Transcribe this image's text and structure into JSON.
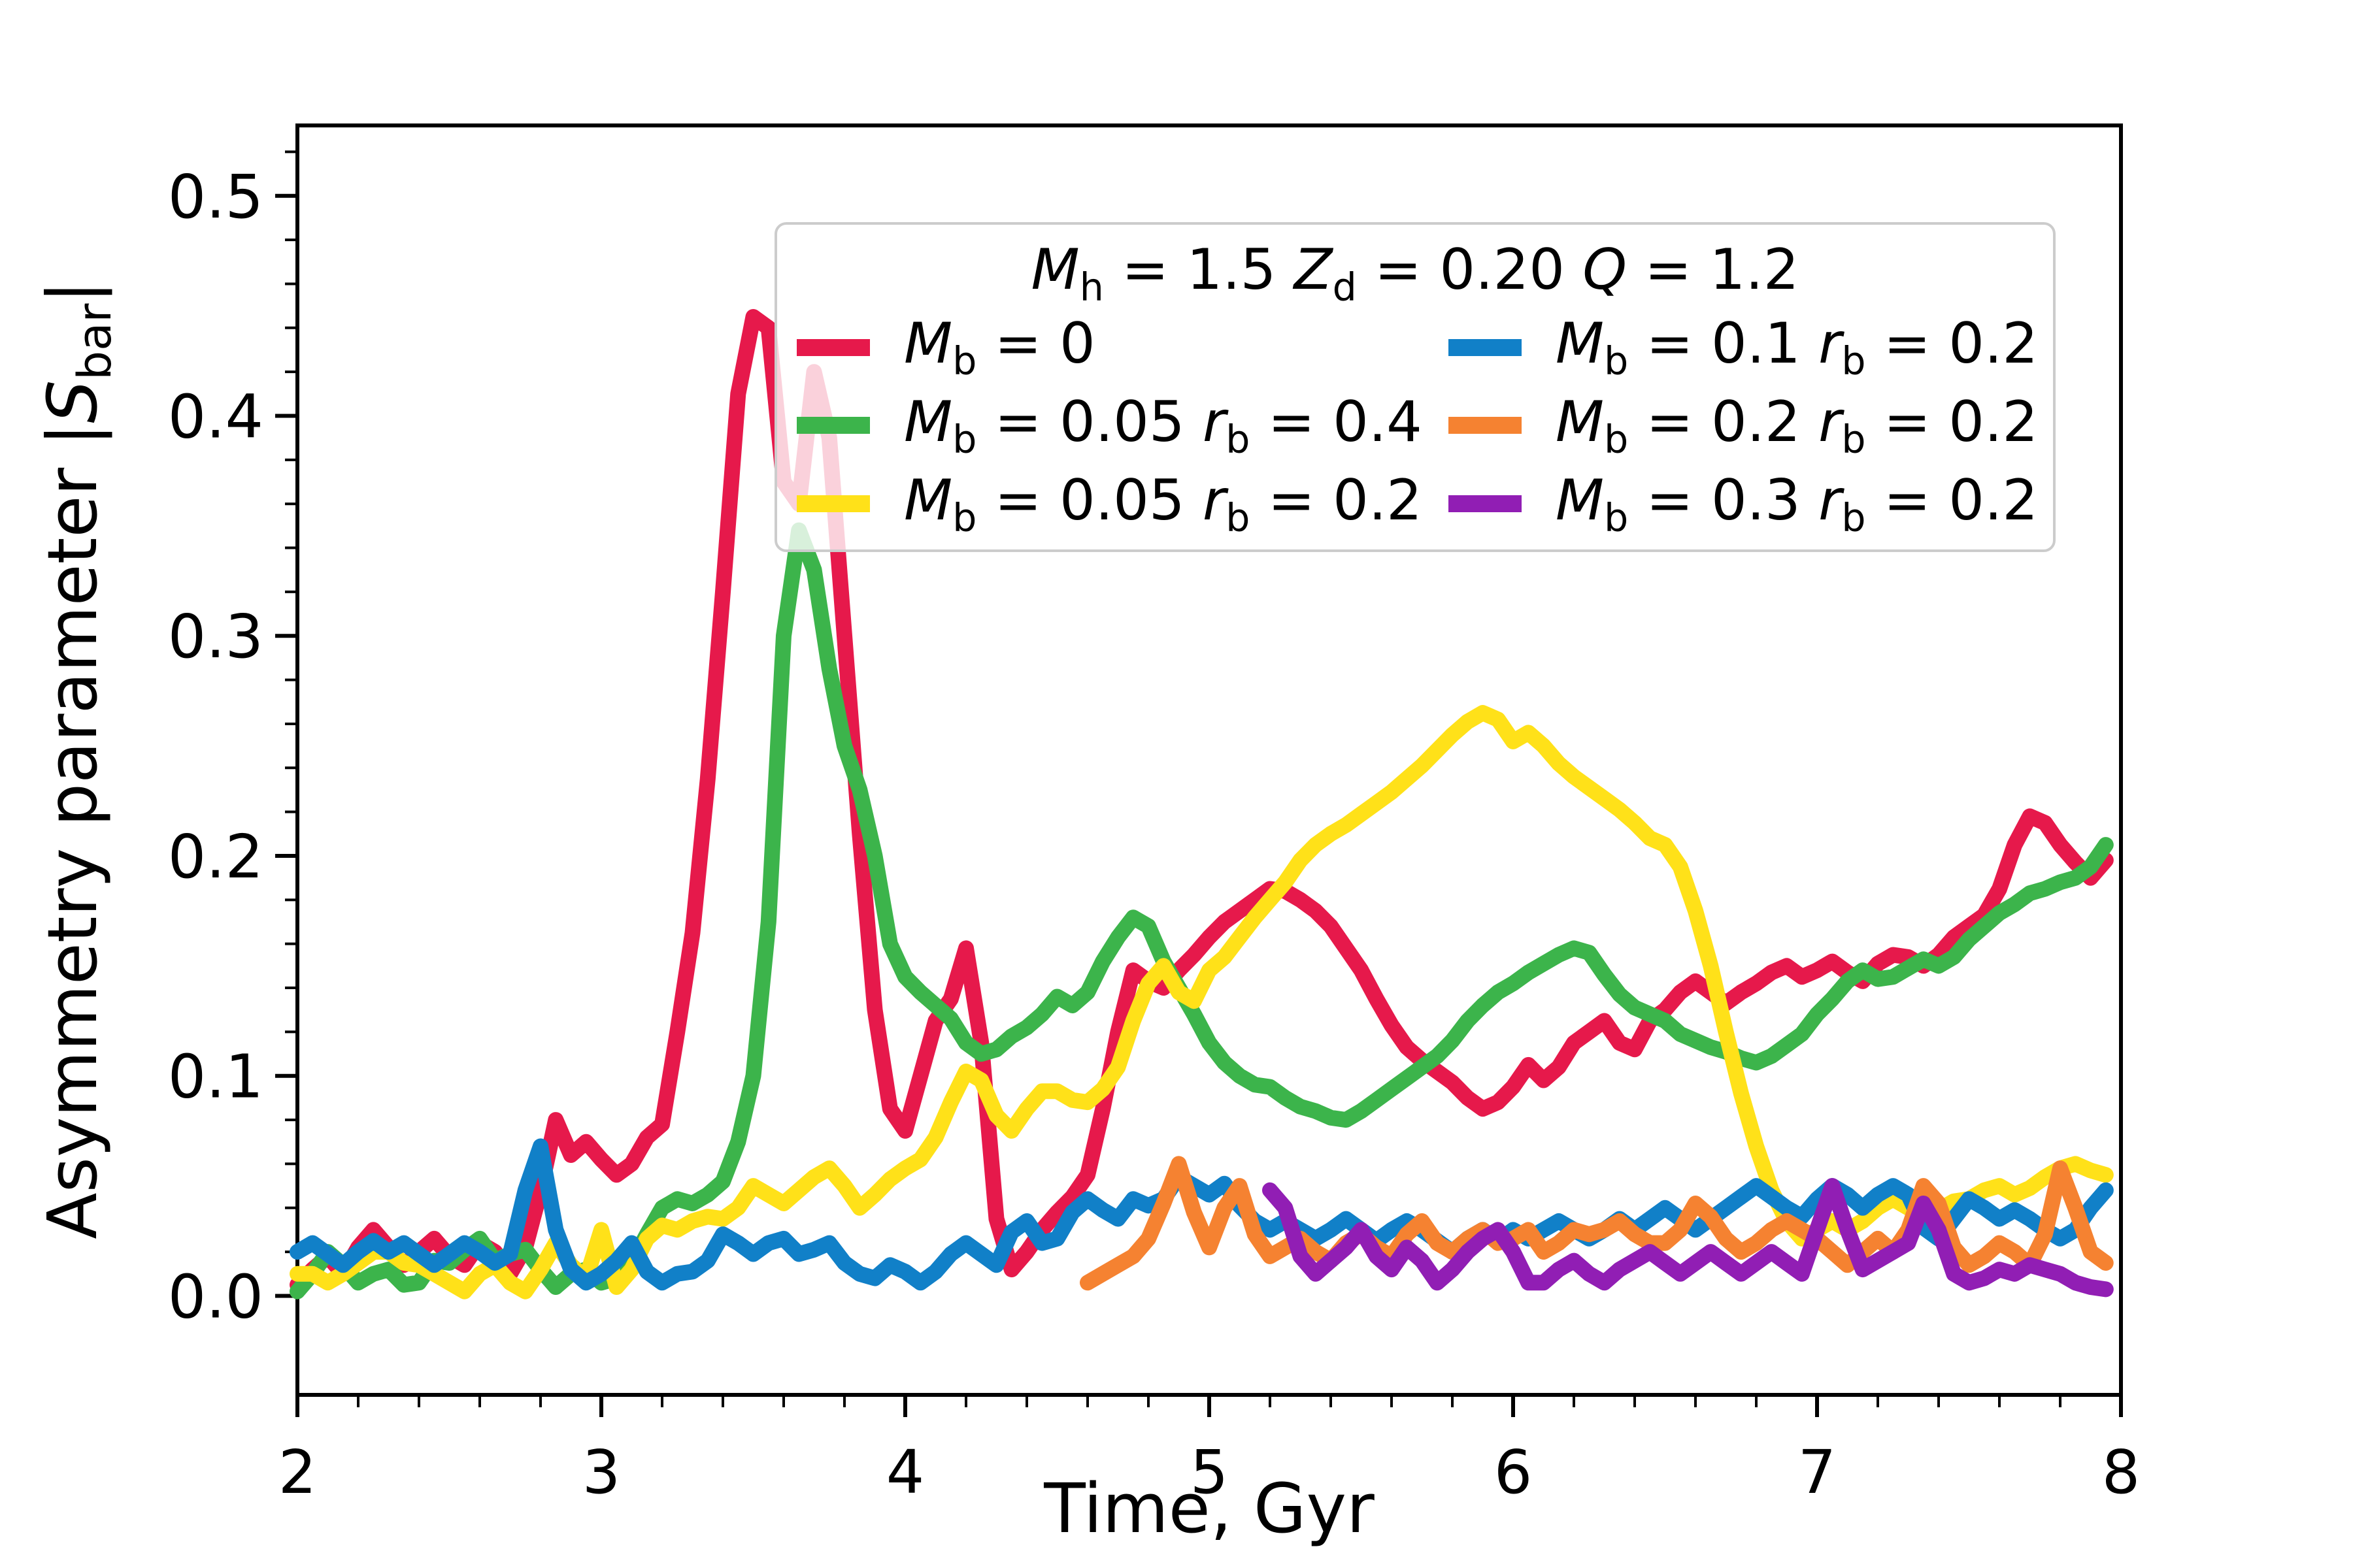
{
  "figure": {
    "background": "#ffffff"
  },
  "axes": {
    "xlabel": "Time, Gyr",
    "ylabel": "Asymmetry parameter |S_bar|",
    "tick_color": "#000000",
    "spine_color": "#000000"
  },
  "legend": {
    "title": "M_h = 1.5 Z_d = 0.20 Q = 1.2",
    "entries": [
      {
        "label": "M_b = 0",
        "color": "#E6194B"
      },
      {
        "label": "M_b = 0.05 r_b = 0.4",
        "color": "#3CB44B"
      },
      {
        "label": "M_b = 0.05 r_b = 0.2",
        "color": "#FFE119"
      },
      {
        "label": "M_b = 0.1 r_b = 0.2",
        "color": "#1180C8"
      },
      {
        "label": "M_b = 0.2 r_b = 0.2",
        "color": "#F58231"
      },
      {
        "label": "M_b = 0.3 r_b = 0.2",
        "color": "#911EB4"
      }
    ]
  },
  "chart_data": {
    "type": "line",
    "title": "",
    "xlabel": "Time, Gyr",
    "ylabel": "Asymmetry parameter |S_bar|",
    "xlim": [
      2,
      8
    ],
    "ylim": [
      -0.045,
      0.532
    ],
    "grid": false,
    "legend_position": "upper center-right inside",
    "xticks": {
      "major": [
        2,
        3,
        4,
        5,
        6,
        7,
        8
      ],
      "labels": [
        "2",
        "3",
        "4",
        "5",
        "6",
        "7",
        "8"
      ],
      "minor_step": 0.2
    },
    "yticks": {
      "major": [
        0.0,
        0.1,
        0.2,
        0.3,
        0.4,
        0.5
      ],
      "labels": [
        "0.0",
        "0.1",
        "0.2",
        "0.3",
        "0.4",
        "0.5"
      ],
      "minor_step": 0.02
    },
    "series": [
      {
        "name": "red",
        "label": "M_b = 0",
        "color": "#E6194B",
        "t0": 2.0,
        "dt": 0.05,
        "values": [
          0.005,
          0.012,
          0.018,
          0.01,
          0.022,
          0.03,
          0.022,
          0.014,
          0.02,
          0.026,
          0.018,
          0.014,
          0.024,
          0.02,
          0.01,
          0.022,
          0.048,
          0.08,
          0.064,
          0.07,
          0.062,
          0.055,
          0.06,
          0.072,
          0.078,
          0.12,
          0.165,
          0.235,
          0.32,
          0.41,
          0.445,
          0.44,
          0.37,
          0.36,
          0.42,
          0.39,
          0.3,
          0.21,
          0.13,
          0.085,
          0.075,
          0.1,
          0.125,
          0.135,
          0.158,
          0.115,
          0.035,
          0.012,
          0.02,
          0.03,
          0.038,
          0.045,
          0.055,
          0.085,
          0.12,
          0.148,
          0.143,
          0.14,
          0.148,
          0.155,
          0.163,
          0.17,
          0.175,
          0.18,
          0.185,
          0.184,
          0.18,
          0.175,
          0.168,
          0.158,
          0.148,
          0.135,
          0.123,
          0.113,
          0.107,
          0.102,
          0.097,
          0.09,
          0.085,
          0.088,
          0.095,
          0.105,
          0.098,
          0.104,
          0.115,
          0.12,
          0.125,
          0.115,
          0.112,
          0.125,
          0.13,
          0.138,
          0.143,
          0.138,
          0.133,
          0.138,
          0.142,
          0.147,
          0.15,
          0.145,
          0.148,
          0.152,
          0.147,
          0.143,
          0.151,
          0.155,
          0.154,
          0.15,
          0.155,
          0.163,
          0.168,
          0.173,
          0.185,
          0.205,
          0.218,
          0.215,
          0.205,
          0.197,
          0.19,
          0.198
        ]
      },
      {
        "name": "green",
        "label": "M_b = 0.05 r_b = 0.4",
        "color": "#3CB44B",
        "t0": 2.0,
        "dt": 0.05,
        "values": [
          0.002,
          0.01,
          0.02,
          0.014,
          0.006,
          0.01,
          0.012,
          0.005,
          0.006,
          0.016,
          0.015,
          0.021,
          0.026,
          0.016,
          0.019,
          0.021,
          0.012,
          0.004,
          0.01,
          0.012,
          0.006,
          0.008,
          0.015,
          0.028,
          0.04,
          0.044,
          0.042,
          0.046,
          0.052,
          0.07,
          0.1,
          0.17,
          0.3,
          0.348,
          0.33,
          0.285,
          0.25,
          0.23,
          0.2,
          0.16,
          0.145,
          0.138,
          0.132,
          0.126,
          0.115,
          0.11,
          0.112,
          0.118,
          0.122,
          0.128,
          0.136,
          0.132,
          0.138,
          0.152,
          0.163,
          0.172,
          0.168,
          0.152,
          0.14,
          0.128,
          0.115,
          0.106,
          0.1,
          0.096,
          0.095,
          0.09,
          0.086,
          0.084,
          0.081,
          0.08,
          0.084,
          0.089,
          0.094,
          0.099,
          0.104,
          0.109,
          0.116,
          0.125,
          0.132,
          0.138,
          0.142,
          0.147,
          0.151,
          0.155,
          0.158,
          0.156,
          0.146,
          0.137,
          0.131,
          0.128,
          0.125,
          0.119,
          0.116,
          0.113,
          0.111,
          0.108,
          0.106,
          0.109,
          0.114,
          0.119,
          0.128,
          0.135,
          0.143,
          0.148,
          0.144,
          0.145,
          0.149,
          0.153,
          0.15,
          0.154,
          0.162,
          0.168,
          0.174,
          0.178,
          0.183,
          0.185,
          0.188,
          0.19,
          0.195,
          0.205
        ]
      },
      {
        "name": "yellow",
        "label": "M_b = 0.05 r_b = 0.2",
        "color": "#FFE119",
        "t0": 2.0,
        "dt": 0.05,
        "values": [
          0.01,
          0.01,
          0.006,
          0.01,
          0.015,
          0.02,
          0.02,
          0.015,
          0.014,
          0.01,
          0.006,
          0.002,
          0.01,
          0.014,
          0.006,
          0.002,
          0.012,
          0.024,
          0.014,
          0.008,
          0.03,
          0.004,
          0.012,
          0.026,
          0.032,
          0.03,
          0.034,
          0.036,
          0.035,
          0.04,
          0.05,
          0.046,
          0.042,
          0.048,
          0.054,
          0.058,
          0.05,
          0.04,
          0.046,
          0.053,
          0.058,
          0.062,
          0.072,
          0.088,
          0.102,
          0.098,
          0.082,
          0.075,
          0.085,
          0.093,
          0.093,
          0.089,
          0.088,
          0.094,
          0.104,
          0.125,
          0.142,
          0.15,
          0.138,
          0.134,
          0.148,
          0.154,
          0.163,
          0.172,
          0.18,
          0.188,
          0.198,
          0.205,
          0.21,
          0.214,
          0.219,
          0.224,
          0.229,
          0.235,
          0.241,
          0.248,
          0.255,
          0.261,
          0.265,
          0.262,
          0.252,
          0.256,
          0.25,
          0.242,
          0.236,
          0.231,
          0.226,
          0.221,
          0.215,
          0.208,
          0.205,
          0.195,
          0.175,
          0.15,
          0.12,
          0.092,
          0.068,
          0.048,
          0.034,
          0.026,
          0.03,
          0.034,
          0.03,
          0.034,
          0.04,
          0.044,
          0.04,
          0.036,
          0.039,
          0.043,
          0.044,
          0.048,
          0.05,
          0.046,
          0.049,
          0.054,
          0.058,
          0.06,
          0.057,
          0.055
        ]
      },
      {
        "name": "blue",
        "label": "M_b = 0.1 r_b = 0.2",
        "color": "#1180C8",
        "t0": 2.0,
        "dt": 0.05,
        "values": [
          0.02,
          0.024,
          0.019,
          0.014,
          0.02,
          0.025,
          0.02,
          0.024,
          0.019,
          0.014,
          0.019,
          0.024,
          0.02,
          0.015,
          0.019,
          0.048,
          0.068,
          0.03,
          0.012,
          0.006,
          0.01,
          0.016,
          0.024,
          0.011,
          0.006,
          0.01,
          0.011,
          0.016,
          0.028,
          0.024,
          0.019,
          0.024,
          0.026,
          0.019,
          0.021,
          0.024,
          0.015,
          0.01,
          0.008,
          0.014,
          0.011,
          0.006,
          0.011,
          0.019,
          0.024,
          0.019,
          0.014,
          0.029,
          0.034,
          0.024,
          0.026,
          0.038,
          0.044,
          0.039,
          0.035,
          0.044,
          0.041,
          0.044,
          0.054,
          0.05,
          0.046,
          0.051,
          0.041,
          0.034,
          0.03,
          0.034,
          0.03,
          0.026,
          0.03,
          0.035,
          0.03,
          0.025,
          0.03,
          0.034,
          0.03,
          0.025,
          0.02,
          0.026,
          0.03,
          0.025,
          0.03,
          0.026,
          0.03,
          0.034,
          0.03,
          0.026,
          0.03,
          0.035,
          0.03,
          0.035,
          0.04,
          0.035,
          0.03,
          0.035,
          0.04,
          0.045,
          0.05,
          0.045,
          0.04,
          0.036,
          0.044,
          0.05,
          0.046,
          0.04,
          0.046,
          0.05,
          0.046,
          0.031,
          0.026,
          0.035,
          0.044,
          0.04,
          0.035,
          0.039,
          0.035,
          0.03,
          0.026,
          0.03,
          0.04,
          0.048
        ]
      },
      {
        "name": "orange",
        "label": "M_b = 0.2 r_b = 0.2",
        "color": "#F58231",
        "t0": 4.6,
        "dt": 0.05,
        "values": [
          0.006,
          0.01,
          0.014,
          0.018,
          0.026,
          0.042,
          0.06,
          0.038,
          0.022,
          0.04,
          0.05,
          0.028,
          0.018,
          0.022,
          0.026,
          0.02,
          0.016,
          0.024,
          0.028,
          0.022,
          0.018,
          0.028,
          0.034,
          0.024,
          0.02,
          0.026,
          0.03,
          0.024,
          0.026,
          0.03,
          0.02,
          0.024,
          0.03,
          0.028,
          0.03,
          0.034,
          0.028,
          0.024,
          0.024,
          0.03,
          0.042,
          0.036,
          0.026,
          0.02,
          0.024,
          0.03,
          0.034,
          0.03,
          0.026,
          0.02,
          0.014,
          0.02,
          0.026,
          0.02,
          0.03,
          0.05,
          0.042,
          0.022,
          0.014,
          0.018,
          0.024,
          0.02,
          0.014,
          0.028,
          0.058,
          0.04,
          0.02,
          0.015
        ]
      },
      {
        "name": "purple",
        "label": "M_b = 0.3 r_b = 0.2",
        "color": "#911EB4",
        "t0": 5.2,
        "dt": 0.05,
        "values": [
          0.048,
          0.04,
          0.018,
          0.01,
          0.016,
          0.022,
          0.03,
          0.018,
          0.012,
          0.022,
          0.016,
          0.006,
          0.012,
          0.02,
          0.026,
          0.03,
          0.02,
          0.006,
          0.006,
          0.012,
          0.016,
          0.01,
          0.006,
          0.012,
          0.016,
          0.02,
          0.015,
          0.01,
          0.015,
          0.02,
          0.015,
          0.01,
          0.015,
          0.02,
          0.015,
          0.01,
          0.03,
          0.05,
          0.03,
          0.012,
          0.016,
          0.02,
          0.024,
          0.042,
          0.03,
          0.01,
          0.006,
          0.008,
          0.012,
          0.01,
          0.014,
          0.012,
          0.01,
          0.006,
          0.004,
          0.003
        ]
      }
    ]
  }
}
